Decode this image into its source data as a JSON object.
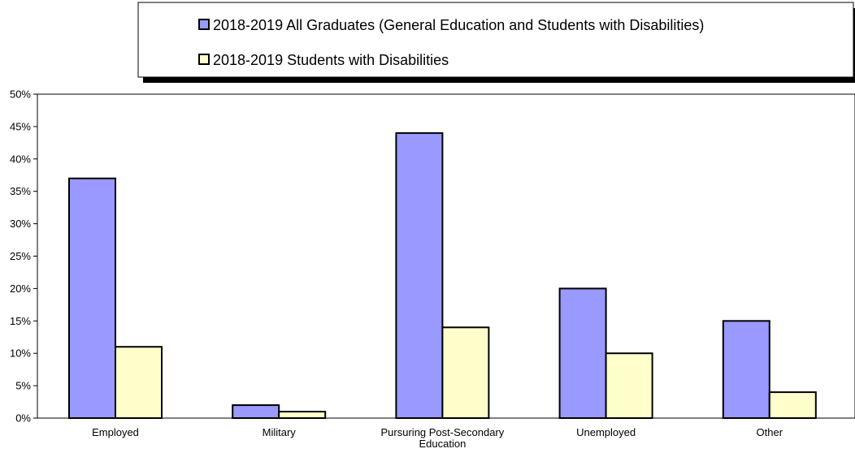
{
  "chart_data": {
    "type": "bar",
    "title": "",
    "xlabel": "",
    "ylabel": "",
    "categories": [
      [
        "Employed"
      ],
      [
        "Military"
      ],
      [
        "Pursuring Post-Secondary",
        "Education"
      ],
      [
        "Unemployed"
      ],
      [
        "Other"
      ]
    ],
    "series": [
      {
        "name": "2018-2019 All Graduates (General Education and Students with Disabilities)",
        "color": "#9999ff",
        "values": [
          37,
          2,
          44,
          20,
          15
        ]
      },
      {
        "name": "2018-2019 Students with Disabilities",
        "color": "#ffffcc",
        "values": [
          11,
          1,
          14,
          10,
          4
        ]
      }
    ],
    "ylim": [
      0,
      50
    ],
    "yticks": [
      0,
      5,
      10,
      15,
      20,
      25,
      30,
      35,
      40,
      45,
      50
    ],
    "ytick_suffix": "%",
    "grid": false,
    "legend_position": "top"
  }
}
